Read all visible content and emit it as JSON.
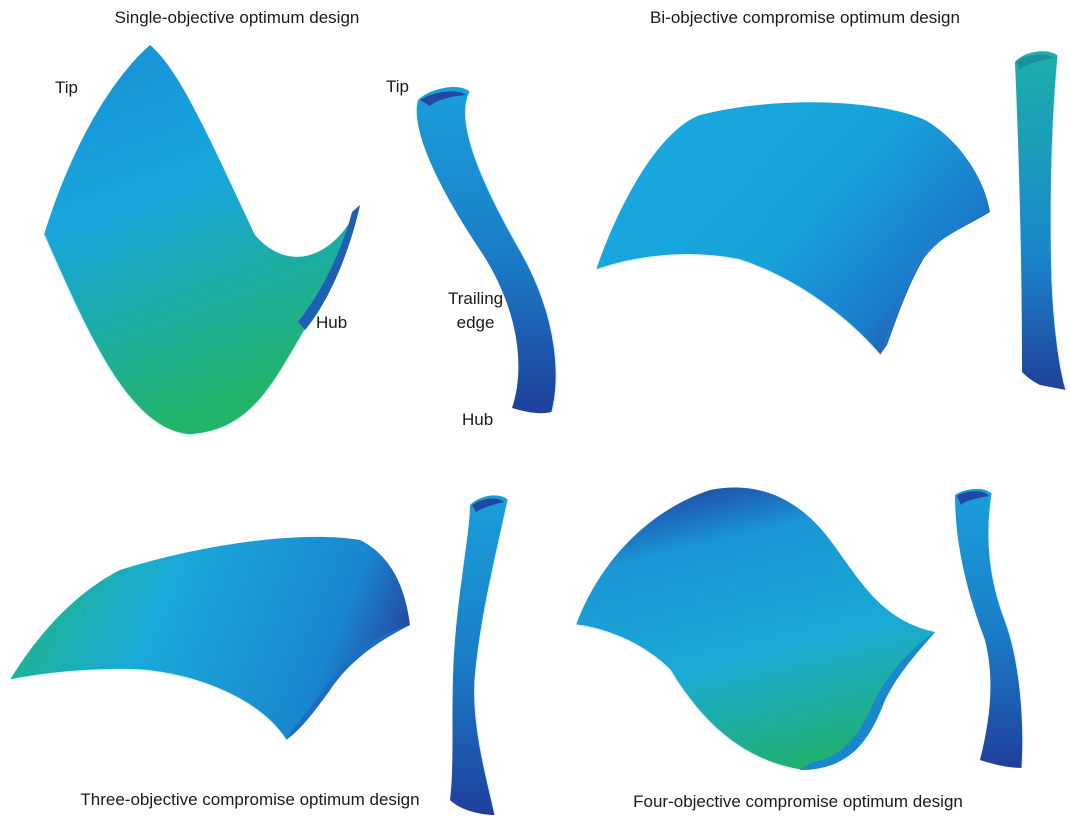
{
  "captions": {
    "single": "Single-objective optimum design",
    "bi": "Bi-objective compromise optimum design",
    "three": "Three-objective compromise optimum design",
    "four": "Four-objective compromise optimum design"
  },
  "labels": {
    "tip_main": "Tip",
    "hub_main": "Hub",
    "tip_side": "Tip",
    "trailing_line1": "Trailing",
    "trailing_line2": "edge",
    "hub_side": "Hub"
  },
  "colors": {
    "blue_dark": "#1f3f9c",
    "blue_mid": "#1d7fd0",
    "cyan": "#16aee0",
    "green": "#1fb27c",
    "edge_highlight": "#dff3ff"
  }
}
